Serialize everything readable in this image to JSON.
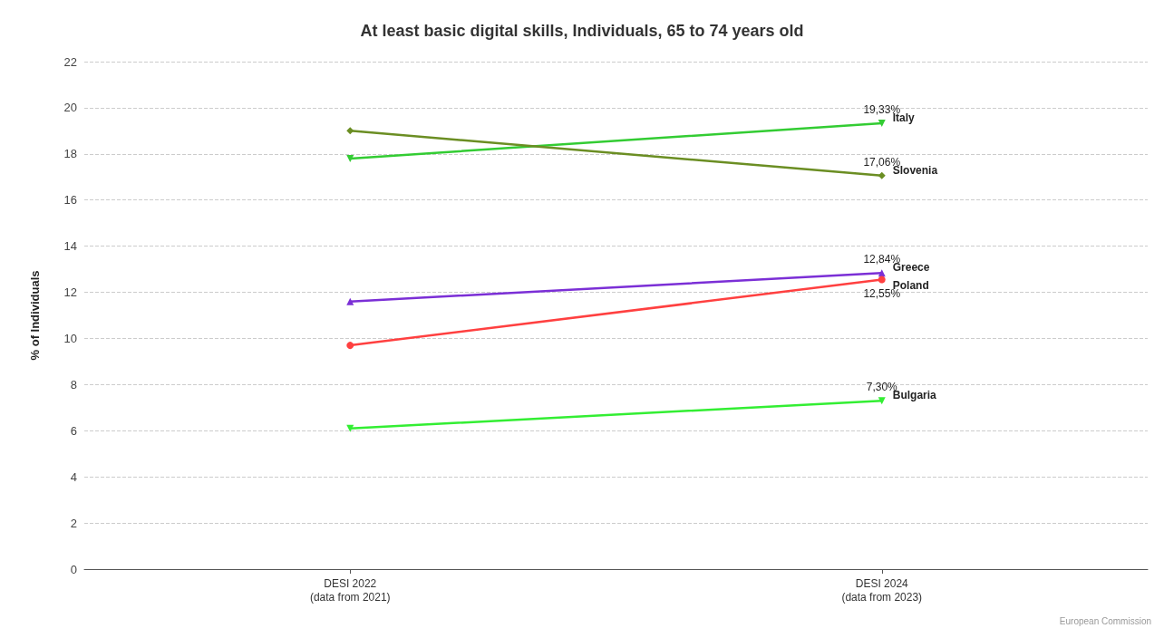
{
  "chart_data": {
    "type": "line",
    "title": "At least basic digital skills, Individuals, 65 to 74 years old",
    "ylabel": "% of Individuals",
    "categories": [
      "DESI 2022\n(data from 2021)",
      "DESI 2024\n(data from 2023)"
    ],
    "series": [
      {
        "name": "Italy",
        "color": "#33cc33",
        "marker": "triangle-down",
        "values": [
          17.8,
          19.33
        ],
        "value_labels": [
          null,
          "19,33%"
        ]
      },
      {
        "name": "Slovenia",
        "color": "#6b8e23",
        "marker": "diamond",
        "values": [
          19.0,
          17.06
        ],
        "value_labels": [
          null,
          "17,06%"
        ]
      },
      {
        "name": "Greece",
        "color": "#7b2fd6",
        "marker": "triangle",
        "values": [
          11.6,
          12.84
        ],
        "value_labels": [
          null,
          "12,84%"
        ]
      },
      {
        "name": "Poland",
        "color": "#ff4040",
        "marker": "circle",
        "values": [
          9.7,
          12.55
        ],
        "value_labels": [
          null,
          "12,55%"
        ]
      },
      {
        "name": "Bulgaria",
        "color": "#33ee33",
        "marker": "triangle-down",
        "values": [
          6.1,
          7.3
        ],
        "value_labels": [
          null,
          "7,30%"
        ]
      }
    ],
    "ylim": [
      0,
      22
    ],
    "yticks": [
      0,
      2,
      4,
      6,
      8,
      10,
      12,
      14,
      16,
      18,
      20,
      22
    ],
    "grid": "y",
    "legend": false,
    "annotations": [
      "European Commission"
    ]
  }
}
